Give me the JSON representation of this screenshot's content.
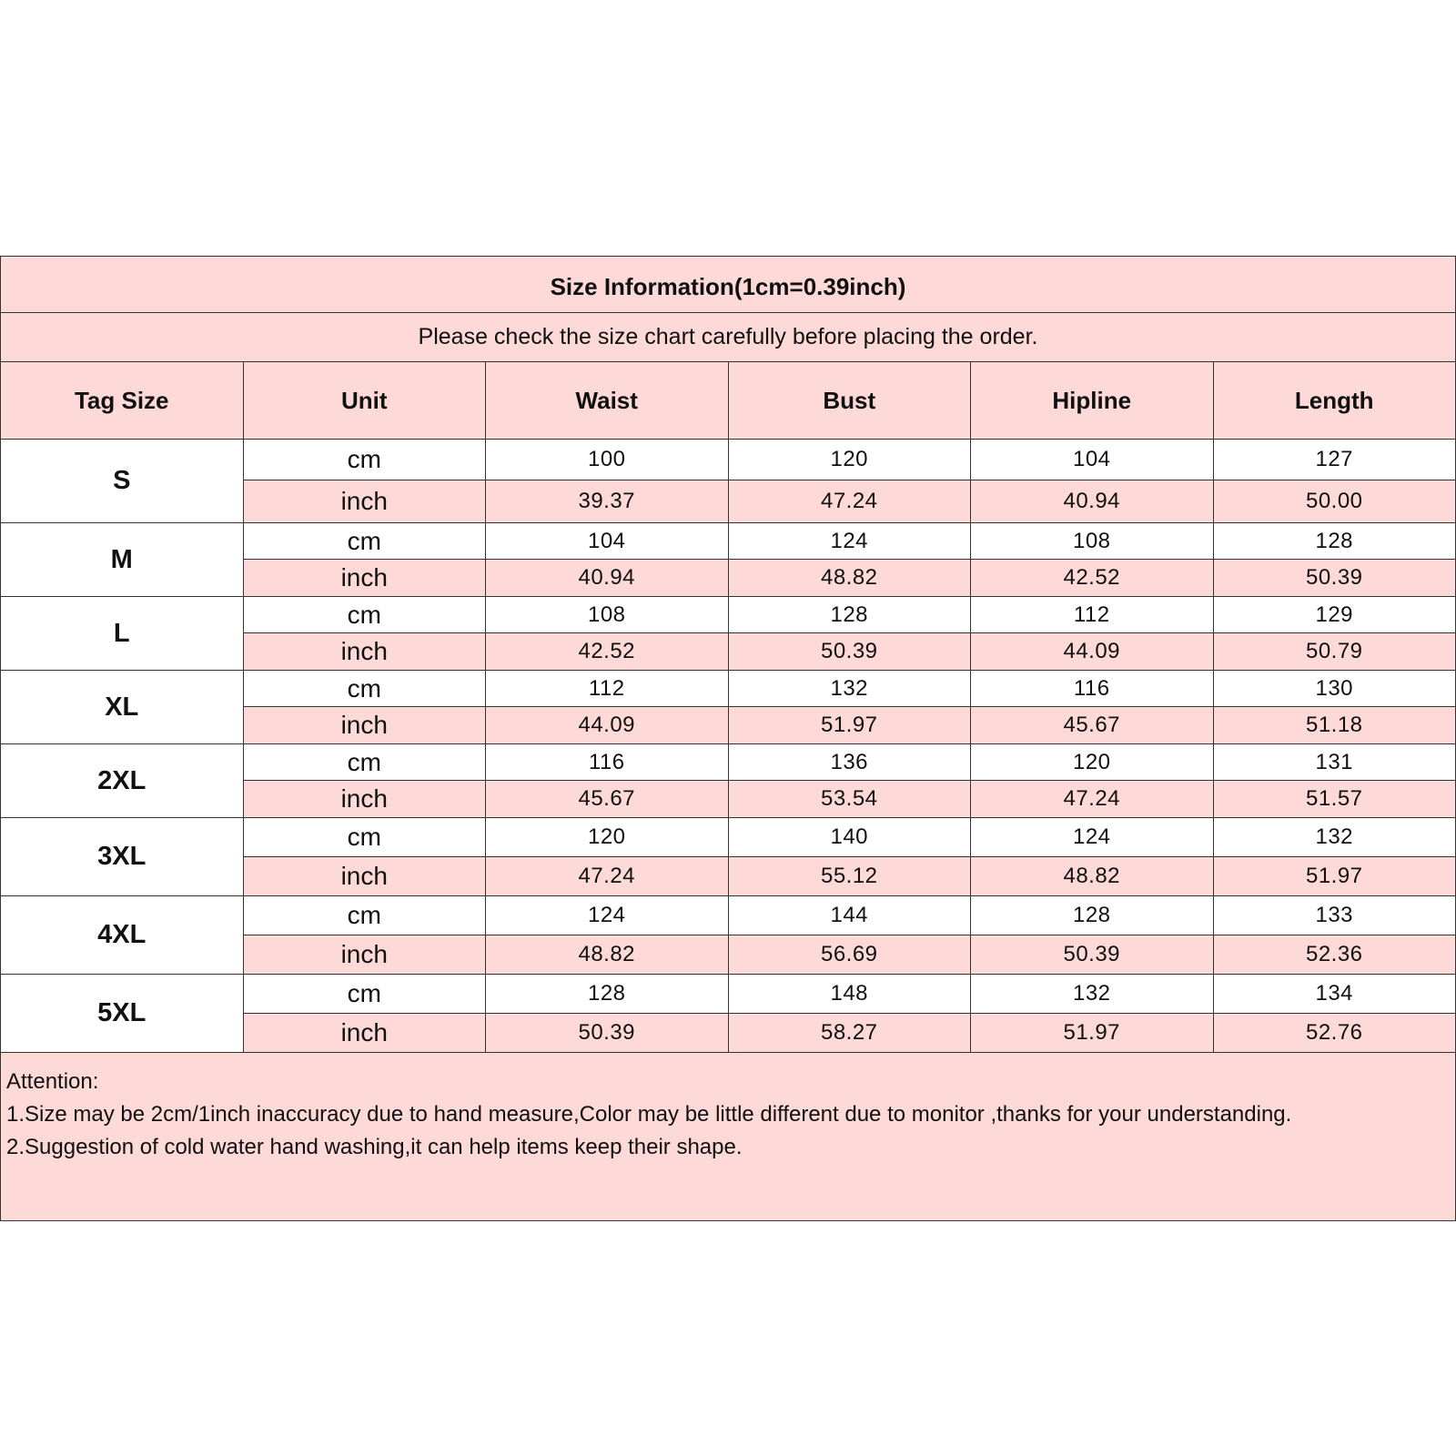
{
  "title": "Size Information(1cm=0.39inch)",
  "subtitle": "Please check the size chart carefully before placing the order.",
  "colors": {
    "pink": "#fdd9d8",
    "border": "#333333"
  },
  "columns": [
    "Tag Size",
    "Unit",
    "Waist",
    "Bust",
    "Hipline",
    "Length"
  ],
  "sizes": [
    {
      "tag": "S",
      "rows": [
        {
          "unit": "cm",
          "values": [
            "100",
            "120",
            "104",
            "127"
          ]
        },
        {
          "unit": "inch",
          "values": [
            "39.37",
            "47.24",
            "40.94",
            "50.00"
          ]
        }
      ]
    },
    {
      "tag": "M",
      "rows": [
        {
          "unit": "cm",
          "values": [
            "104",
            "124",
            "108",
            "128"
          ]
        },
        {
          "unit": "inch",
          "values": [
            "40.94",
            "48.82",
            "42.52",
            "50.39"
          ]
        }
      ]
    },
    {
      "tag": "L",
      "rows": [
        {
          "unit": "cm",
          "values": [
            "108",
            "128",
            "112",
            "129"
          ]
        },
        {
          "unit": "inch",
          "values": [
            "42.52",
            "50.39",
            "44.09",
            "50.79"
          ]
        }
      ]
    },
    {
      "tag": "XL",
      "rows": [
        {
          "unit": "cm",
          "values": [
            "112",
            "132",
            "116",
            "130"
          ]
        },
        {
          "unit": "inch",
          "values": [
            "44.09",
            "51.97",
            "45.67",
            "51.18"
          ]
        }
      ]
    },
    {
      "tag": "2XL",
      "rows": [
        {
          "unit": "cm",
          "values": [
            "116",
            "136",
            "120",
            "131"
          ]
        },
        {
          "unit": "inch",
          "values": [
            "45.67",
            "53.54",
            "47.24",
            "51.57"
          ]
        }
      ]
    },
    {
      "tag": "3XL",
      "rows": [
        {
          "unit": "cm",
          "values": [
            "120",
            "140",
            "124",
            "132"
          ]
        },
        {
          "unit": "inch",
          "values": [
            "47.24",
            "55.12",
            "48.82",
            "51.97"
          ]
        }
      ]
    },
    {
      "tag": "4XL",
      "rows": [
        {
          "unit": "cm",
          "values": [
            "124",
            "144",
            "128",
            "133"
          ]
        },
        {
          "unit": "inch",
          "values": [
            "48.82",
            "56.69",
            "50.39",
            "52.36"
          ]
        }
      ]
    },
    {
      "tag": "5XL",
      "rows": [
        {
          "unit": "cm",
          "values": [
            "128",
            "148",
            "132",
            "134"
          ]
        },
        {
          "unit": "inch",
          "values": [
            "50.39",
            "58.27",
            "51.97",
            "52.76"
          ]
        }
      ]
    }
  ],
  "notes": {
    "heading": "Attention:",
    "items": [
      "1.Size may be 2cm/1inch inaccuracy due to hand measure,Color may be little different due to monitor ,thanks for your understanding.",
      "2.Suggestion of cold water hand washing,it can help items keep their shape."
    ]
  }
}
